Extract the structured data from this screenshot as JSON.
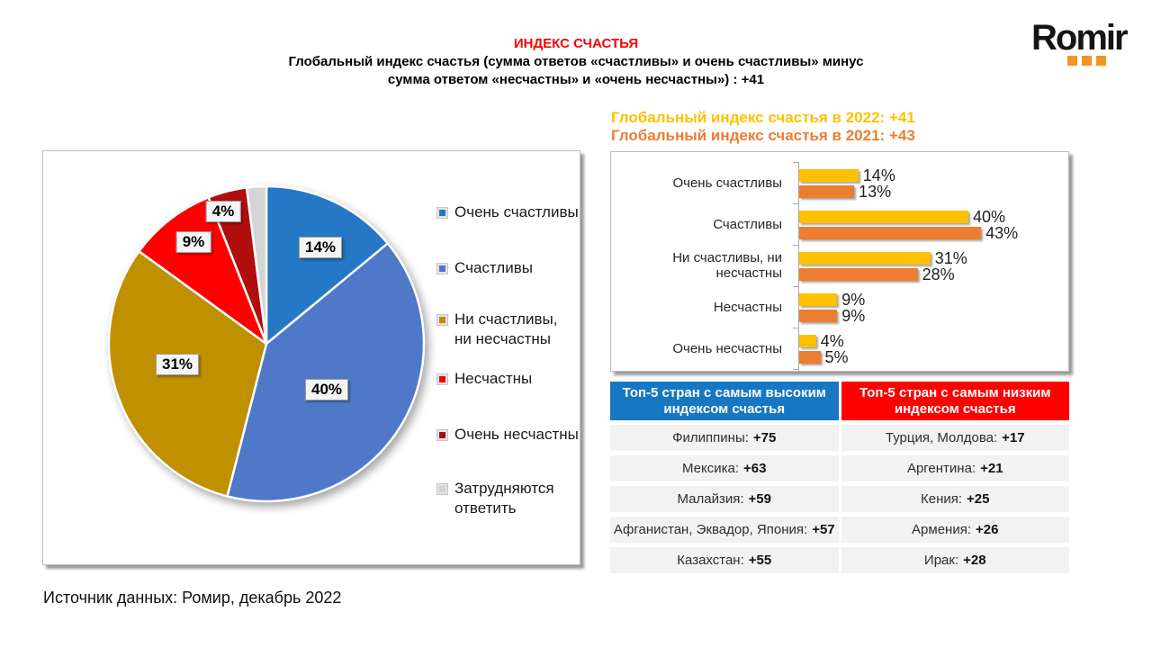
{
  "header": {
    "title": "ИНДЕКС СЧАСТЬЯ",
    "subtitle_line1": "Глобальный индекс счастья (сумма ответов «счастливы» и очень счастливы» минус",
    "subtitle_line2": "сумма ответом «несчастны» и «очень несчастны») : +41",
    "logo_text": "Romir"
  },
  "colors": {
    "title_red": "#FF0000",
    "yellow_2022": "#FFC000",
    "orange_2021": "#ED7D31",
    "table_header_blue": "#1777C3",
    "table_header_red": "#FF0000",
    "table_row_bg": "#F2F2F2"
  },
  "chart_data": [
    {
      "type": "pie",
      "labels": [
        "Очень счастливы",
        "Счастливы",
        "Ни счастливы, ни несчастны",
        "Несчастны",
        "Очень несчастны",
        "Затрудняются ответить"
      ],
      "values": [
        14,
        40,
        31,
        9,
        4,
        2
      ],
      "colors": [
        "#2478C6",
        "#4F79C8",
        "#BF9000",
        "#FF0000",
        "#B00D0F",
        "#D4D4D4"
      ],
      "data_labels": [
        "14%",
        "40%",
        "31%",
        "9%",
        "4%",
        ""
      ],
      "legend_position": "right",
      "start_angle": 0,
      "direction": "clockwise"
    },
    {
      "type": "bar",
      "orientation": "horizontal",
      "categories": [
        "Очень счастливы",
        "Счастливы",
        "Ни счастливы, ни несчастны",
        "Несчастны",
        "Очень несчастны"
      ],
      "series": [
        {
          "name": "2022",
          "label": "Глобальный индекс счастья в 2022: +41",
          "color": "#FFC000",
          "values": [
            14,
            40,
            31,
            9,
            4
          ]
        },
        {
          "name": "2021",
          "label": "Глобальный индекс счастья в 2021: +43",
          "color": "#ED7D31",
          "values": [
            13,
            43,
            28,
            9,
            5
          ]
        }
      ],
      "value_suffix": "%",
      "xlim": [
        0,
        45
      ],
      "grid": false,
      "legend_position": "above"
    }
  ],
  "table": {
    "high": {
      "header": "Топ-5 стран с самым высоким индексом счастья",
      "rows": [
        {
          "label": "Филиппины:",
          "value": "+75"
        },
        {
          "label": "Мексика:",
          "value": "+63"
        },
        {
          "label": "Малайзия:",
          "value": "+59"
        },
        {
          "label": "Афганистан,  Эквадор, Япония:",
          "value": "+57"
        },
        {
          "label": "Казахстан:",
          "value": "+55"
        }
      ]
    },
    "low": {
      "header": "Топ-5 стран с самым низким индексом счастья",
      "rows": [
        {
          "label": "Турция, Молдова:",
          "value": "+17"
        },
        {
          "label": "Аргентина:",
          "value": "+21"
        },
        {
          "label": "Кения:",
          "value": "+25"
        },
        {
          "label": "Армения:",
          "value": "+26"
        },
        {
          "label": "Ирак:",
          "value": "+28"
        }
      ]
    }
  },
  "source": "Источник данных:  Ромир, декабрь 2022"
}
